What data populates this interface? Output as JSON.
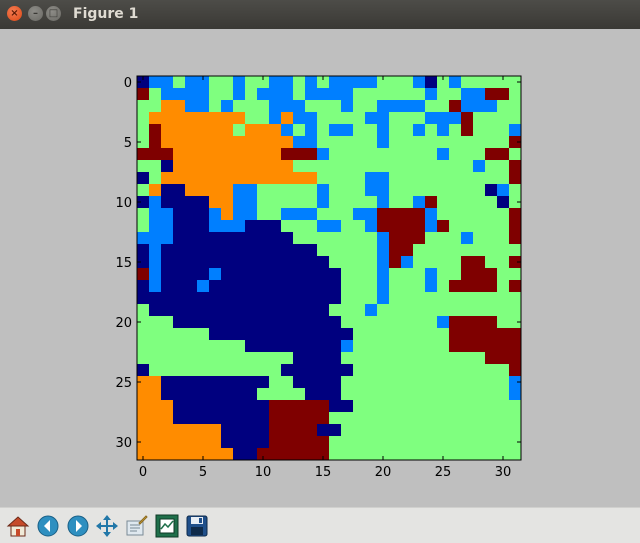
{
  "window": {
    "title": "Figure 1"
  },
  "toolbar": {
    "tools": [
      {
        "name": "home-icon",
        "tooltip": "Reset original view"
      },
      {
        "name": "back-arrow-icon",
        "tooltip": "Back to previous view"
      },
      {
        "name": "forward-arrow-icon",
        "tooltip": "Forward to next view"
      },
      {
        "name": "pan-icon",
        "tooltip": "Pan axes"
      },
      {
        "name": "zoom-rect-icon",
        "tooltip": "Zoom to rectangle"
      },
      {
        "name": "subplots-icon",
        "tooltip": "Configure subplots"
      },
      {
        "name": "save-icon",
        "tooltip": "Save the figure"
      }
    ]
  },
  "chart_data": {
    "type": "heatmap",
    "title": "",
    "xlabel": "",
    "ylabel": "",
    "shape": [
      32,
      32
    ],
    "x_ticks": [
      0,
      5,
      10,
      15,
      20,
      25,
      30
    ],
    "y_ticks": [
      0,
      5,
      10,
      15,
      20,
      25,
      30
    ],
    "xlim": [
      -0.5,
      31.5
    ],
    "ylim": [
      31.5,
      -0.5
    ],
    "colormap": "jet",
    "palette": [
      "#00007f",
      "#007fff",
      "#7fff7f",
      "#ff8c00",
      "#7f0000"
    ],
    "grid": false,
    "rows": [
      "01121122122112121111222102122222",
      "42111122121112111122222212211442",
      "22331121222111222122111122411122",
      "23333333322131122221122211142222",
      "24333333233312121122122121242221",
      "24333333333331122222122222222224",
      "44433333333344412222222221222442",
      "22033333333332222222222222221224",
      "02333333333333322221122222222224",
      "23003333112222212221122222222012",
      "01000033112222212222122142222202",
      "21100013112211122211444412222224",
      "21100011100022211221444414222224",
      "11100000000002222222144422212224",
      "01000000000000022222144222222222",
      "01000000000000002222141222244224",
      "41000010000000000222122212244422",
      "01000100000000000222122212444424",
      "00000000000000000222122222222222",
      "20000000000000002221222222222222",
      "22200000000000000222222221444422",
      "22222200000000000022222222444444",
      "22222222200000000122222222444444",
      "22222222222220000222222222222444",
      "02222222222200000022222222222224",
      "33000000000220000222222222222221",
      "33000000002222000222222222222221",
      "33300000000444440022222222222222",
      "33300000000444442222222222222222",
      "33333330000444400222222222222222",
      "33333330000444442222222222222222",
      "33333333004444442222222222222222"
    ]
  }
}
